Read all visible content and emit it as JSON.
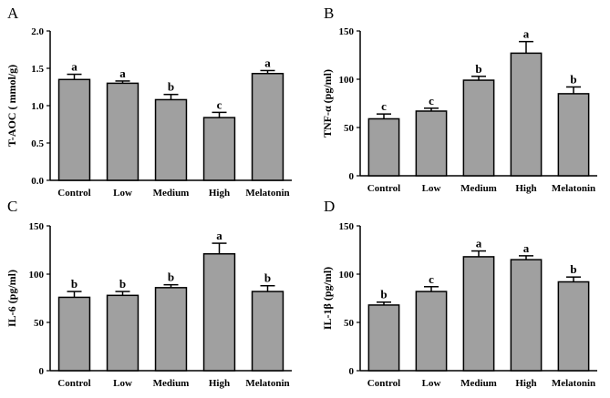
{
  "chart_data": [
    {
      "type": "bar",
      "panel": "A",
      "title": "",
      "xlabel": "",
      "ylabel": "T-AOC ( mmol/g)",
      "ylim": [
        0,
        2.0
      ],
      "yticks": [
        "0.0",
        "0.5",
        "1.0",
        "1.5",
        "2.0"
      ],
      "categories": [
        "Control",
        "Low",
        "Medium",
        "High",
        "Melatonin"
      ],
      "values": [
        1.35,
        1.3,
        1.08,
        0.84,
        1.43
      ],
      "errors": [
        0.07,
        0.03,
        0.07,
        0.07,
        0.04
      ],
      "significance": [
        "a",
        "a",
        "b",
        "c",
        "a"
      ]
    },
    {
      "type": "bar",
      "panel": "B",
      "title": "",
      "xlabel": "",
      "ylabel": "TNF-α (pg/ml)",
      "ylim": [
        0,
        150
      ],
      "yticks": [
        "0",
        "50",
        "100",
        "150"
      ],
      "categories": [
        "Control",
        "Low",
        "Medium",
        "High",
        "Melatonin"
      ],
      "values": [
        59,
        67,
        99,
        127,
        85
      ],
      "errors": [
        5,
        3,
        4,
        12,
        7
      ],
      "significance": [
        "c",
        "c",
        "b",
        "a",
        "b"
      ]
    },
    {
      "type": "bar",
      "panel": "C",
      "title": "",
      "xlabel": "",
      "ylabel": "IL-6 (pg/ml)",
      "ylim": [
        0,
        150
      ],
      "yticks": [
        "0",
        "50",
        "100",
        "150"
      ],
      "categories": [
        "Control",
        "Low",
        "Medium",
        "High",
        "Melatonin"
      ],
      "values": [
        76,
        78,
        86,
        121,
        82
      ],
      "errors": [
        6,
        4,
        3,
        11,
        6
      ],
      "significance": [
        "b",
        "b",
        "b",
        "a",
        "b"
      ]
    },
    {
      "type": "bar",
      "panel": "D",
      "title": "",
      "xlabel": "",
      "ylabel": "IL-1β (pg/ml)",
      "ylim": [
        0,
        150
      ],
      "yticks": [
        "0",
        "50",
        "100",
        "150"
      ],
      "categories": [
        "Control",
        "Low",
        "Medium",
        "High",
        "Melatonin"
      ],
      "values": [
        68,
        82,
        118,
        115,
        92
      ],
      "errors": [
        3,
        5,
        6,
        4,
        5
      ],
      "significance": [
        "b",
        "c",
        "a",
        "a",
        "b"
      ]
    }
  ],
  "colors": {
    "bar_fill": "#a0a0a0",
    "bar_stroke": "#000000",
    "axis": "#000000"
  }
}
